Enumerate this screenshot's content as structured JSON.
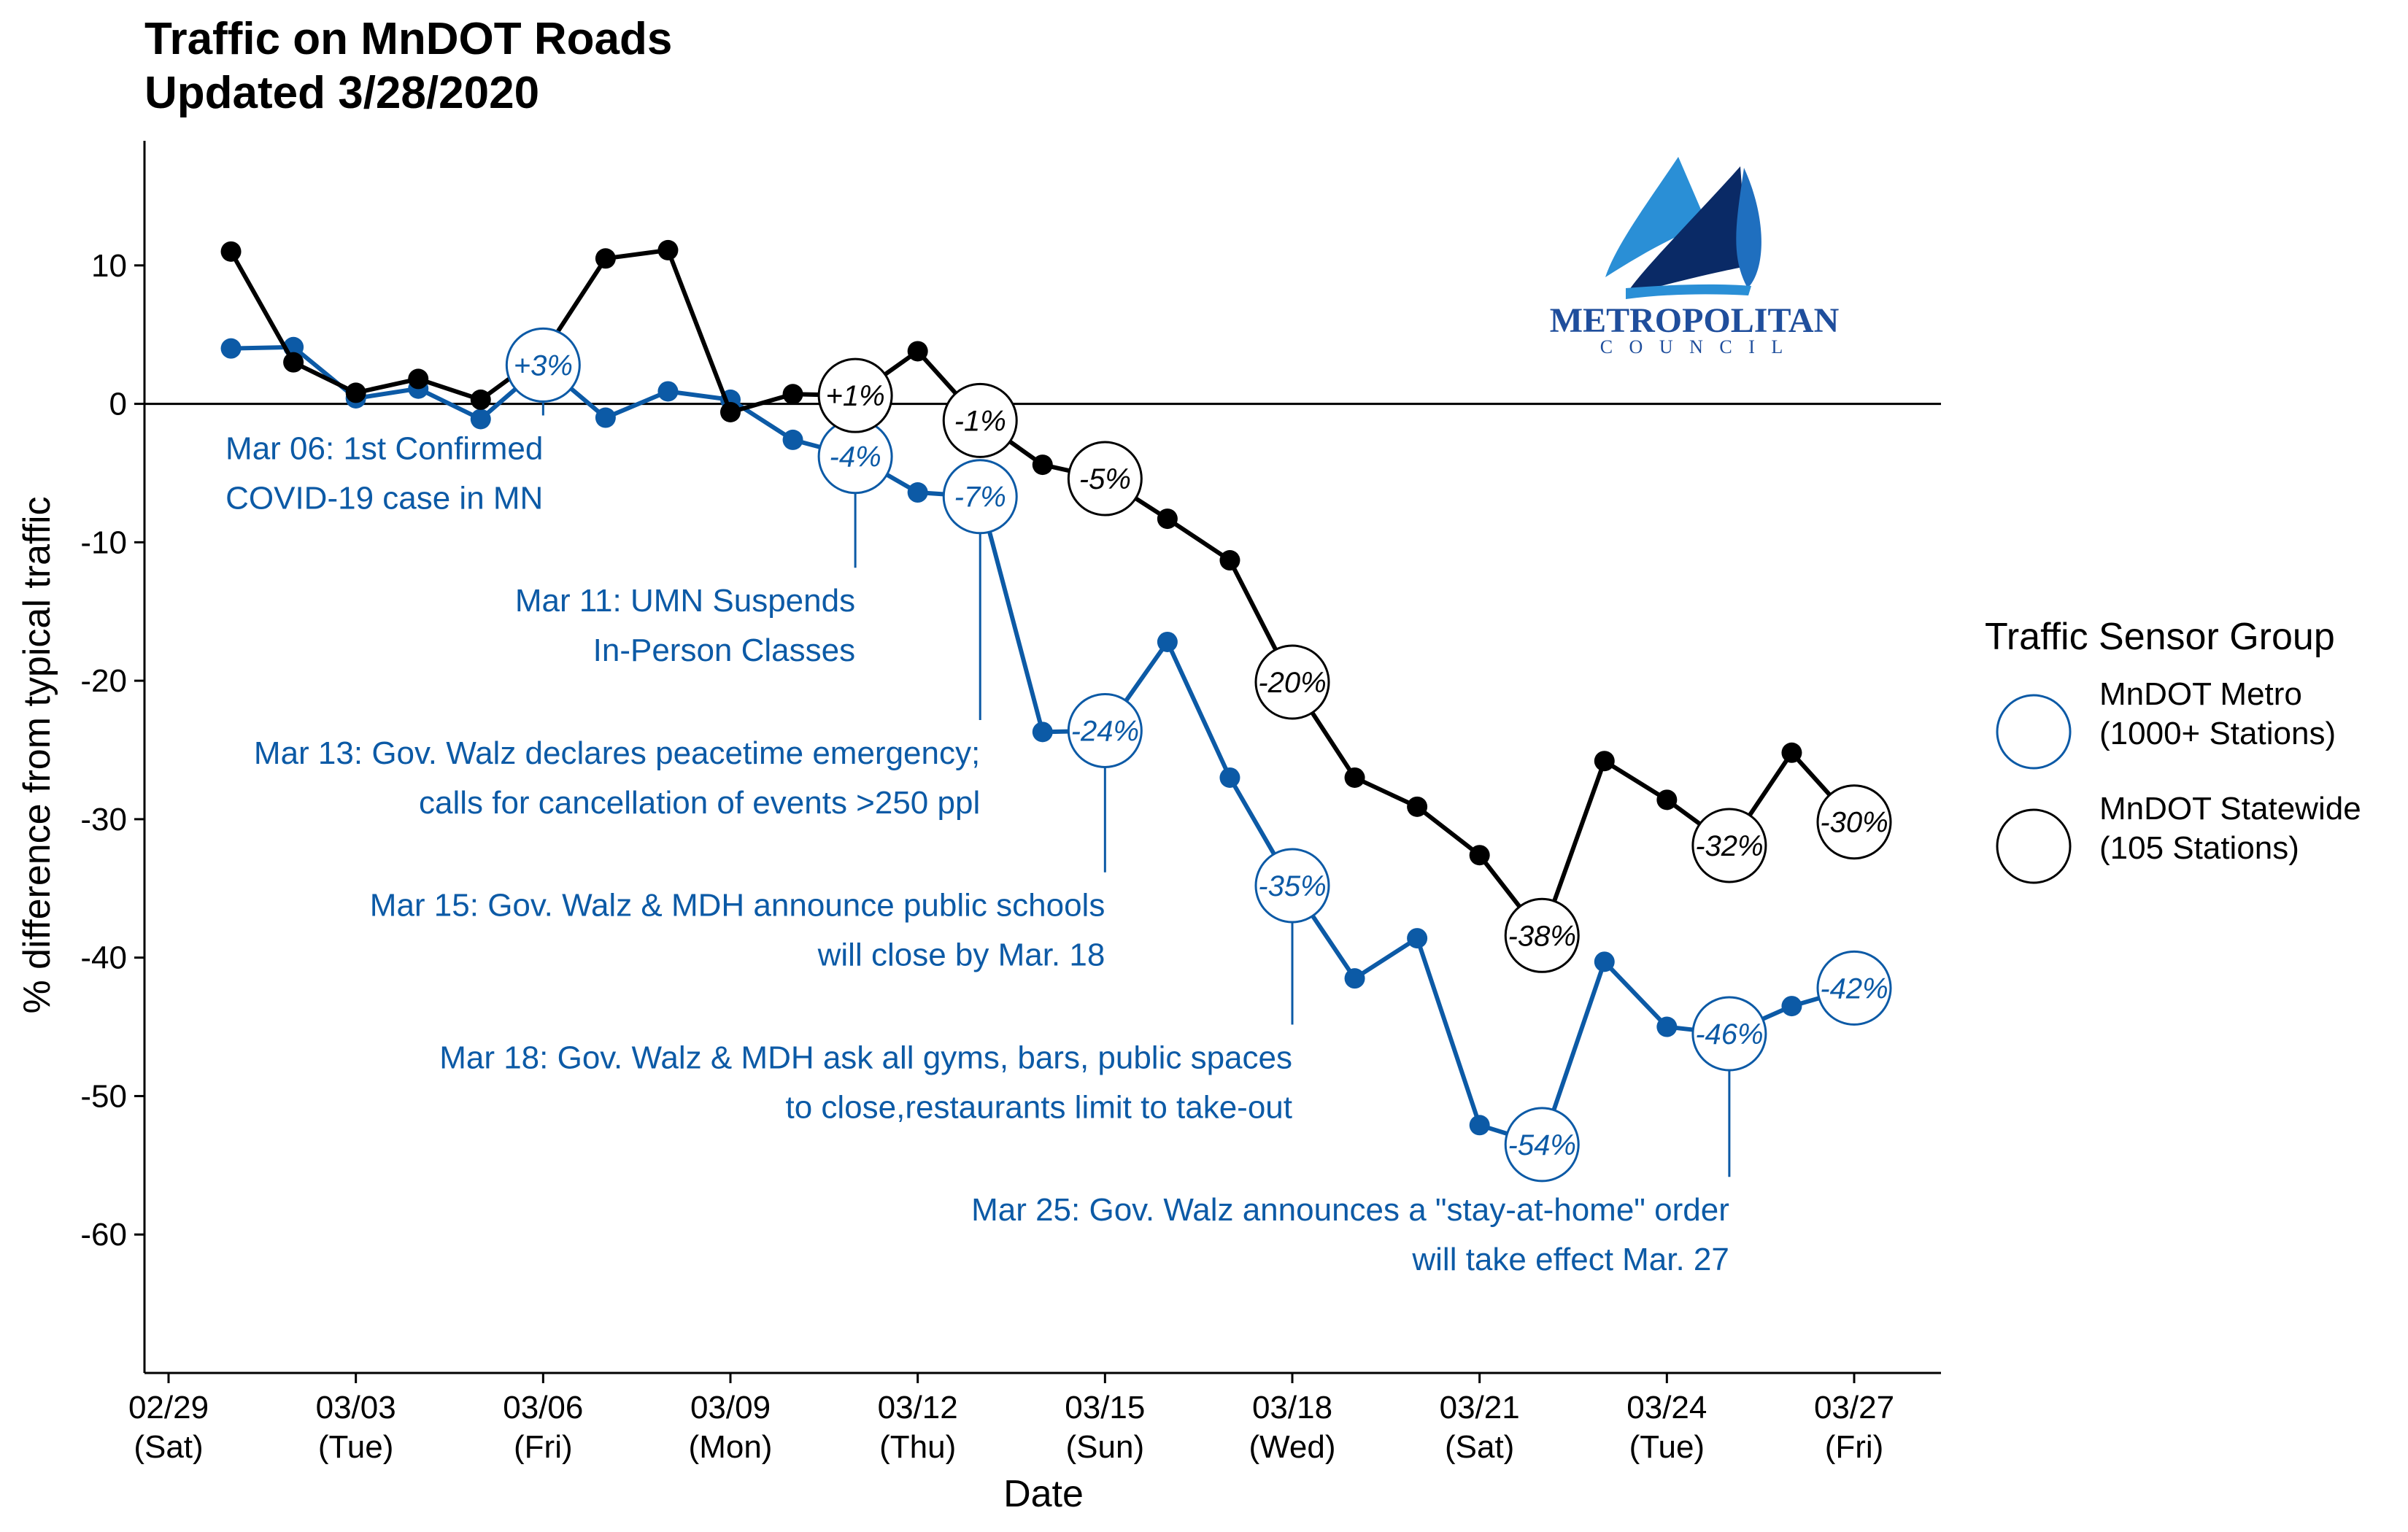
{
  "chart_data": {
    "type": "line",
    "title": "Traffic on MnDOT Roads",
    "subtitle": "Updated 3/28/2020",
    "xlabel": "Date",
    "ylabel": "% difference from typical traffic",
    "ylim": [
      -70,
      19
    ],
    "yticks": [
      10,
      0,
      -10,
      -20,
      -30,
      -40,
      -50,
      -60
    ],
    "xticks": [
      {
        "date": "2020-02-29",
        "label": "02/29",
        "day": "(Sat)"
      },
      {
        "date": "2020-03-03",
        "label": "03/03",
        "day": "(Tue)"
      },
      {
        "date": "2020-03-06",
        "label": "03/06",
        "day": "(Fri)"
      },
      {
        "date": "2020-03-09",
        "label": "03/09",
        "day": "(Mon)"
      },
      {
        "date": "2020-03-12",
        "label": "03/12",
        "day": "(Thu)"
      },
      {
        "date": "2020-03-15",
        "label": "03/15",
        "day": "(Sun)"
      },
      {
        "date": "2020-03-18",
        "label": "03/18",
        "day": "(Wed)"
      },
      {
        "date": "2020-03-21",
        "label": "03/21",
        "day": "(Sat)"
      },
      {
        "date": "2020-03-24",
        "label": "03/24",
        "day": "(Tue)"
      },
      {
        "date": "2020-03-27",
        "label": "03/27",
        "day": "(Fri)"
      }
    ],
    "grid": false,
    "reference_line": 0,
    "legend": {
      "title": "Traffic Sensor Group",
      "placement": "right",
      "entries": [
        {
          "line1": "MnDOT Metro",
          "line2": "(1000+ Stations)",
          "color": "#0c5aa6"
        },
        {
          "line1": "MnDOT Statewide",
          "line2": "(105 Stations)",
          "color": "#000000"
        }
      ]
    },
    "x": [
      "2020-03-01",
      "2020-03-02",
      "2020-03-03",
      "2020-03-04",
      "2020-03-05",
      "2020-03-06",
      "2020-03-07",
      "2020-03-08",
      "2020-03-09",
      "2020-03-10",
      "2020-03-11",
      "2020-03-12",
      "2020-03-13",
      "2020-03-14",
      "2020-03-15",
      "2020-03-16",
      "2020-03-17",
      "2020-03-18",
      "2020-03-19",
      "2020-03-20",
      "2020-03-21",
      "2020-03-22",
      "2020-03-23",
      "2020-03-24",
      "2020-03-25",
      "2020-03-26",
      "2020-03-27"
    ],
    "series": [
      {
        "name": "MnDOT Metro",
        "color": "#0c5aa6",
        "values": [
          4,
          4.1,
          0.4,
          1.1,
          -1.1,
          2.8,
          -1,
          0.9,
          0.3,
          -2.6,
          -3.8,
          -6.4,
          -6.7,
          -23.7,
          -23.6,
          -17.2,
          -27,
          -34.8,
          -41.5,
          -38.6,
          -52.1,
          -53.5,
          -40.3,
          -45,
          -45.5,
          -43.5,
          -42.2
        ]
      },
      {
        "name": "MnDOT Statewide",
        "color": "#000000",
        "values": [
          11,
          3,
          0.8,
          1.8,
          0.3,
          3.6,
          10.5,
          11.1,
          -0.6,
          0.7,
          0.6,
          3.8,
          -1.2,
          -4.4,
          -5.4,
          -8.3,
          -11.3,
          -20.1,
          -27,
          -29.1,
          -32.6,
          -38.4,
          -25.8,
          -28.6,
          -31.9,
          -25.2,
          -30.2
        ]
      }
    ],
    "point_labels": [
      {
        "series": 0,
        "date": "2020-03-06",
        "text": "+3%"
      },
      {
        "series": 0,
        "date": "2020-03-11",
        "text": "-4%"
      },
      {
        "series": 0,
        "date": "2020-03-13",
        "text": "-7%"
      },
      {
        "series": 0,
        "date": "2020-03-15",
        "text": "-24%"
      },
      {
        "series": 0,
        "date": "2020-03-18",
        "text": "-35%"
      },
      {
        "series": 0,
        "date": "2020-03-22",
        "text": "-54%"
      },
      {
        "series": 0,
        "date": "2020-03-25",
        "text": "-46%"
      },
      {
        "series": 0,
        "date": "2020-03-27",
        "text": "-42%"
      },
      {
        "series": 1,
        "date": "2020-03-11",
        "text": "+1%"
      },
      {
        "series": 1,
        "date": "2020-03-13",
        "text": "-1%"
      },
      {
        "series": 1,
        "date": "2020-03-15",
        "text": "-5%"
      },
      {
        "series": 1,
        "date": "2020-03-18",
        "text": "-20%"
      },
      {
        "series": 1,
        "date": "2020-03-22",
        "text": "-38%"
      },
      {
        "series": 1,
        "date": "2020-03-25",
        "text": "-32%"
      },
      {
        "series": 1,
        "date": "2020-03-27",
        "text": "-30%"
      }
    ],
    "annotations": [
      {
        "date": "2020-03-06",
        "y_value": -4,
        "lines": [
          "Mar 06: 1st Confirmed",
          "COVID-19 case in MN"
        ]
      },
      {
        "date": "2020-03-11",
        "y_value": -15,
        "lines": [
          "Mar 11: UMN Suspends",
          "In-Person Classes"
        ]
      },
      {
        "date": "2020-03-13",
        "y_value": -26,
        "lines": [
          "Mar 13: Gov. Walz declares peacetime emergency;",
          "calls for cancellation of events >250 ppl"
        ]
      },
      {
        "date": "2020-03-15",
        "y_value": -37,
        "lines": [
          "Mar 15: Gov. Walz & MDH announce public schools",
          "will close by Mar. 18"
        ]
      },
      {
        "date": "2020-03-18",
        "y_value": -48,
        "lines": [
          "Mar 18: Gov. Walz & MDH ask all gyms, bars, public spaces",
          "to close,restaurants limit to take-out"
        ]
      },
      {
        "date": "2020-03-25",
        "y_value": -59,
        "lines": [
          "Mar 25: Gov. Walz announces a \"stay-at-home\" order",
          "will take effect Mar. 27"
        ]
      }
    ]
  },
  "logo": {
    "name": "METROPOLITAN",
    "subname": "C O U N C I L",
    "colors": [
      "#1f4e9c",
      "#2a8fd6",
      "#0a2a66"
    ]
  }
}
